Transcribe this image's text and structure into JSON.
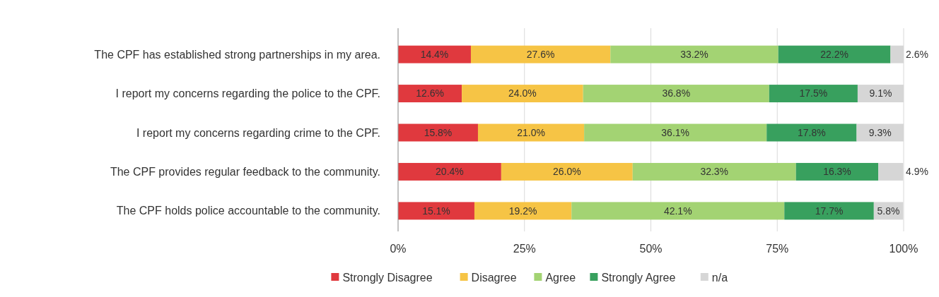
{
  "chart_data": {
    "type": "bar",
    "orientation": "horizontal",
    "stacked": true,
    "categories": [
      "The CPF has established strong partnerships in my area.",
      "I report my concerns regarding the police to the CPF.",
      "I report my concerns regarding crime to the CPF.",
      "The CPF provides regular feedback to the community.",
      "The CPF holds police accountable to the community."
    ],
    "series": [
      {
        "name": "Strongly Disagree",
        "color": "#e0393e",
        "values": [
          14.4,
          12.6,
          15.8,
          20.4,
          15.1
        ],
        "value_labels": [
          "14.4%",
          "12.6%",
          "15.8%",
          "20.4%",
          "15.1%"
        ]
      },
      {
        "name": "Disagree",
        "color": "#f6c445",
        "values": [
          27.6,
          24.0,
          21.0,
          26.0,
          19.2
        ],
        "value_labels": [
          "27.6%",
          "24.0%",
          "21.0%",
          "26.0%",
          "19.2%"
        ]
      },
      {
        "name": "Agree",
        "color": "#a3d373",
        "values": [
          33.2,
          36.8,
          36.1,
          32.3,
          42.1
        ],
        "value_labels": [
          "33.2%",
          "36.8%",
          "36.1%",
          "32.3%",
          "42.1%"
        ]
      },
      {
        "name": "Strongly Agree",
        "color": "#38a05e",
        "values": [
          22.2,
          17.5,
          17.8,
          16.3,
          17.7
        ],
        "value_labels": [
          "22.2%",
          "17.5%",
          "17.8%",
          "16.3%",
          "17.7%"
        ]
      },
      {
        "name": "n/a",
        "color": "#d6d6d6",
        "values": [
          2.6,
          9.1,
          9.3,
          4.9,
          5.8
        ],
        "value_labels": [
          "2.6%",
          "9.1%",
          "9.3%",
          "4.9%",
          "5.8%"
        ]
      }
    ],
    "xlim": [
      0,
      100
    ],
    "xticks": [
      {
        "value": 0,
        "label": "0%"
      },
      {
        "value": 25,
        "label": "25%"
      },
      {
        "value": 50,
        "label": "50%"
      },
      {
        "value": 75,
        "label": "75%"
      },
      {
        "value": 100,
        "label": "100%"
      }
    ],
    "grid": "x",
    "legend": "bottom"
  }
}
